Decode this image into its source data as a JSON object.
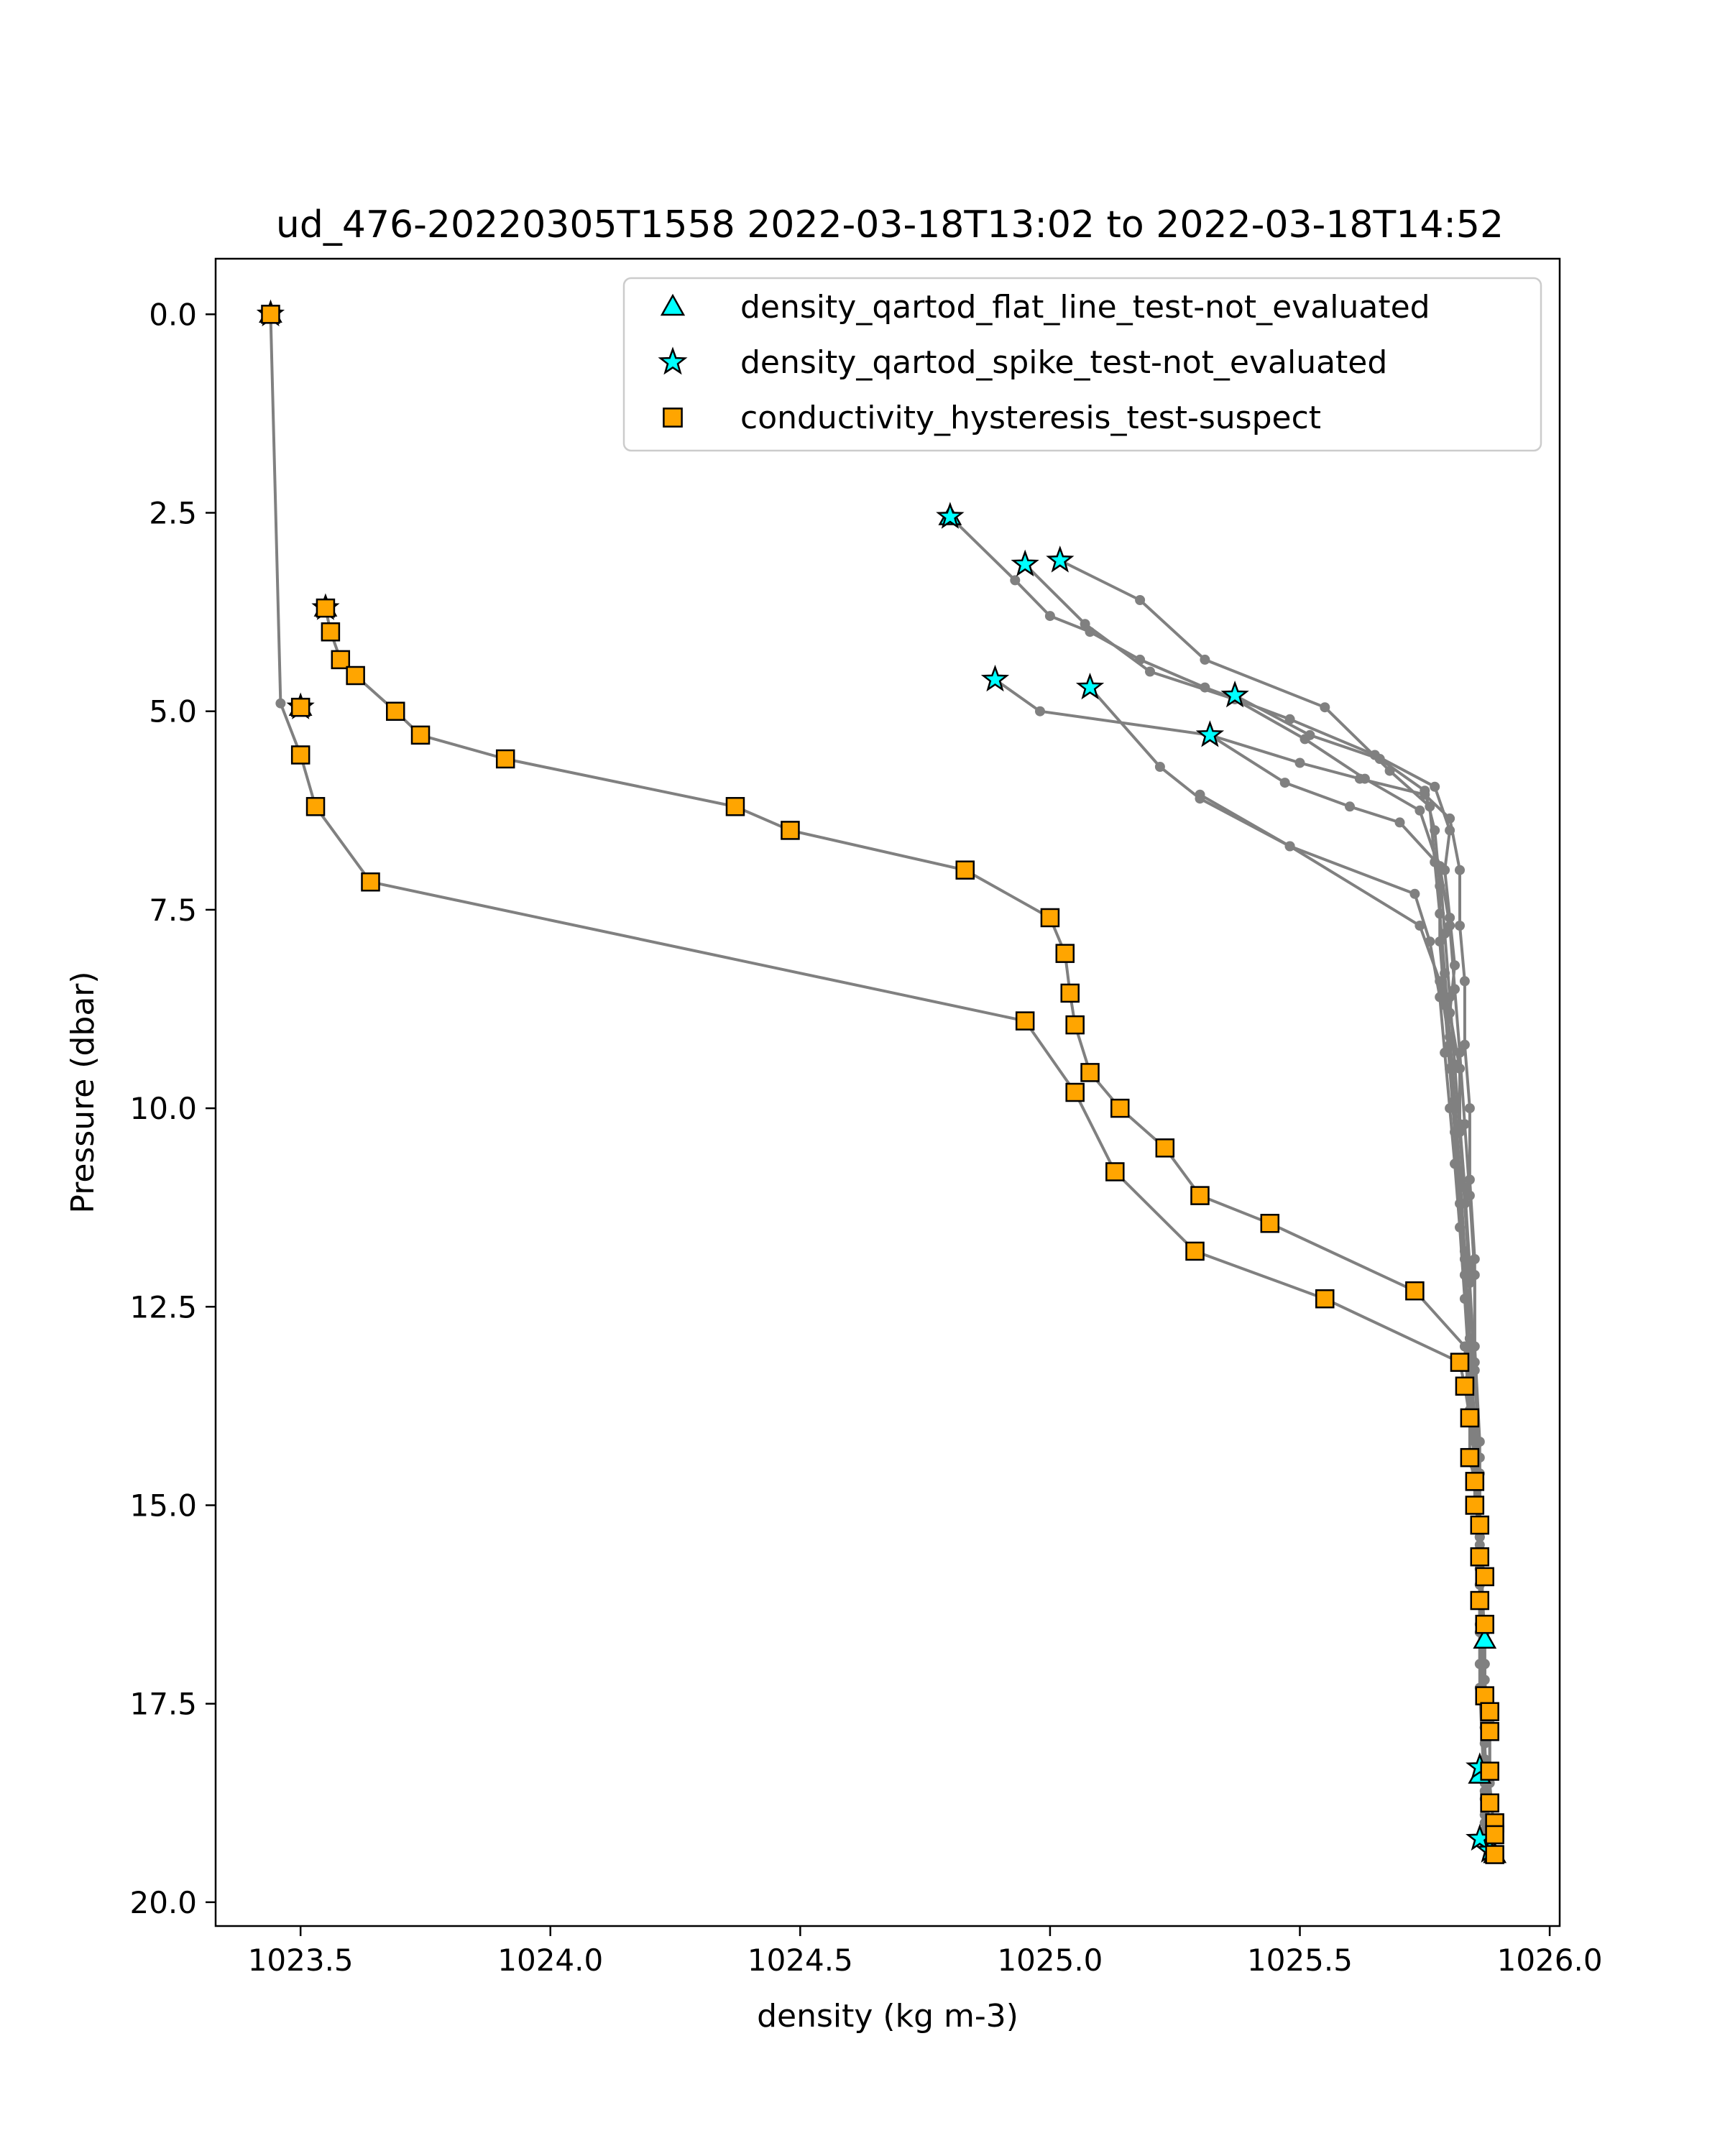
{
  "chart_data": {
    "type": "line",
    "title": "ud_476-20220305T1558 2022-03-18T13:02 to 2022-03-18T14:52",
    "xlabel": "density (kg m-3)",
    "ylabel": "Pressure (dbar)",
    "xlim": [
      1023.33,
      1026.02
    ],
    "ylim": [
      20.3,
      -0.7
    ],
    "y_inverted": true,
    "grid": false,
    "legend_position": "top-right",
    "x_ticks": [
      1023.5,
      1024.0,
      1024.5,
      1025.0,
      1025.5,
      1026.0
    ],
    "x_tick_labels": [
      "1023.5",
      "1024.0",
      "1024.5",
      "1025.0",
      "1025.5",
      "1026.0"
    ],
    "y_ticks": [
      0.0,
      2.5,
      5.0,
      7.5,
      10.0,
      12.5,
      15.0,
      17.5,
      20.0
    ],
    "y_tick_labels": [
      "0.0",
      "2.5",
      "5.0",
      "7.5",
      "10.0",
      "12.5",
      "15.0",
      "17.5",
      "20.0"
    ],
    "colors": {
      "profile_line": "#808080",
      "marker_fill_qartod": "#00ffff",
      "marker_fill_suspect": "#ffa500",
      "marker_edge": "#000000"
    },
    "profile_lines": [
      [
        [
          1023.44,
          0.0
        ],
        [
          1023.46,
          4.9
        ],
        [
          1023.5,
          5.55
        ],
        [
          1023.53,
          6.2
        ],
        [
          1023.64,
          7.15
        ],
        [
          1024.95,
          8.9
        ],
        [
          1025.05,
          9.8
        ],
        [
          1025.13,
          10.8
        ],
        [
          1025.29,
          11.8
        ],
        [
          1025.55,
          12.4
        ],
        [
          1025.82,
          13.2
        ],
        [
          1025.83,
          13.5
        ],
        [
          1025.84,
          13.9
        ],
        [
          1025.84,
          14.4
        ],
        [
          1025.85,
          14.7
        ],
        [
          1025.85,
          15.0
        ],
        [
          1025.86,
          15.25
        ],
        [
          1025.86,
          15.65
        ],
        [
          1025.87,
          15.9
        ],
        [
          1025.86,
          16.2
        ],
        [
          1025.87,
          16.5
        ],
        [
          1025.87,
          16.7
        ],
        [
          1025.87,
          17.0
        ],
        [
          1025.87,
          17.4
        ],
        [
          1025.88,
          17.7
        ],
        [
          1025.88,
          17.9
        ],
        [
          1025.88,
          18.3
        ],
        [
          1025.87,
          18.6
        ],
        [
          1025.88,
          19.0
        ],
        [
          1025.88,
          19.4
        ]
      ],
      [
        [
          1023.55,
          3.7
        ],
        [
          1023.56,
          4.0
        ],
        [
          1023.58,
          4.35
        ],
        [
          1023.61,
          4.55
        ],
        [
          1023.69,
          5.0
        ],
        [
          1023.74,
          5.3
        ],
        [
          1023.91,
          5.6
        ],
        [
          1024.37,
          6.2
        ],
        [
          1024.48,
          6.5
        ],
        [
          1024.83,
          7.0
        ],
        [
          1025.0,
          7.6
        ],
        [
          1025.03,
          8.05
        ],
        [
          1025.04,
          8.55
        ],
        [
          1025.05,
          8.95
        ],
        [
          1025.08,
          9.55
        ],
        [
          1025.14,
          10.0
        ],
        [
          1025.23,
          10.5
        ],
        [
          1025.3,
          11.1
        ],
        [
          1025.44,
          11.45
        ],
        [
          1025.73,
          12.3
        ],
        [
          1025.83,
          13.0
        ],
        [
          1025.84,
          13.8
        ],
        [
          1025.85,
          14.5
        ],
        [
          1025.86,
          15.2
        ],
        [
          1025.86,
          16.0
        ],
        [
          1025.87,
          16.6
        ],
        [
          1025.87,
          17.2
        ],
        [
          1025.88,
          17.9
        ],
        [
          1025.88,
          18.5
        ],
        [
          1025.89,
          19.2
        ]
      ],
      [
        [
          1024.8,
          2.55
        ],
        [
          1024.93,
          3.35
        ],
        [
          1025.0,
          3.8
        ],
        [
          1025.08,
          4.0
        ],
        [
          1025.18,
          4.35
        ],
        [
          1025.31,
          4.7
        ],
        [
          1025.48,
          5.1
        ],
        [
          1025.65,
          5.55
        ],
        [
          1025.77,
          5.95
        ],
        [
          1025.8,
          6.5
        ],
        [
          1025.79,
          7.0
        ],
        [
          1025.8,
          7.6
        ],
        [
          1025.81,
          8.2
        ],
        [
          1025.8,
          8.8
        ],
        [
          1025.82,
          9.5
        ],
        [
          1025.82,
          10.2
        ],
        [
          1025.83,
          11.0
        ],
        [
          1025.84,
          12.0
        ],
        [
          1025.84,
          13.0
        ],
        [
          1025.85,
          14.0
        ],
        [
          1025.86,
          15.5
        ],
        [
          1025.87,
          17.0
        ],
        [
          1025.87,
          18.5
        ],
        [
          1025.88,
          19.4
        ]
      ],
      [
        [
          1025.02,
          3.1
        ],
        [
          1025.18,
          3.6
        ],
        [
          1025.31,
          4.35
        ],
        [
          1025.55,
          4.95
        ],
        [
          1025.68,
          5.75
        ],
        [
          1025.76,
          6.2
        ],
        [
          1025.77,
          6.9
        ],
        [
          1025.78,
          7.55
        ],
        [
          1025.79,
          8.3
        ],
        [
          1025.8,
          9.1
        ],
        [
          1025.81,
          9.9
        ],
        [
          1025.82,
          10.8
        ],
        [
          1025.83,
          11.8
        ],
        [
          1025.84,
          12.9
        ],
        [
          1025.85,
          14.2
        ],
        [
          1025.86,
          15.8
        ],
        [
          1025.86,
          17.3
        ],
        [
          1025.87,
          18.7
        ]
      ],
      [
        [
          1024.95,
          3.15
        ],
        [
          1025.07,
          3.9
        ],
        [
          1025.2,
          4.5
        ],
        [
          1025.37,
          4.85
        ],
        [
          1025.51,
          5.35
        ],
        [
          1025.63,
          5.85
        ],
        [
          1025.74,
          6.25
        ],
        [
          1025.78,
          7.0
        ],
        [
          1025.79,
          7.8
        ],
        [
          1025.8,
          8.6
        ],
        [
          1025.81,
          9.45
        ],
        [
          1025.82,
          10.3
        ],
        [
          1025.83,
          11.2
        ],
        [
          1025.84,
          12.2
        ],
        [
          1025.85,
          13.3
        ],
        [
          1025.86,
          14.6
        ],
        [
          1025.86,
          16.0
        ],
        [
          1025.87,
          17.5
        ],
        [
          1025.87,
          18.9
        ]
      ],
      [
        [
          1024.89,
          4.6
        ],
        [
          1024.98,
          5.0
        ],
        [
          1025.32,
          5.3
        ],
        [
          1025.5,
          5.65
        ],
        [
          1025.62,
          5.85
        ],
        [
          1025.75,
          6.05
        ],
        [
          1025.8,
          6.35
        ],
        [
          1025.82,
          7.0
        ],
        [
          1025.82,
          7.7
        ],
        [
          1025.83,
          8.4
        ],
        [
          1025.83,
          9.2
        ],
        [
          1025.84,
          10.0
        ],
        [
          1025.84,
          10.9
        ],
        [
          1025.85,
          11.9
        ],
        [
          1025.85,
          13.0
        ],
        [
          1025.86,
          14.2
        ],
        [
          1025.86,
          15.4
        ],
        [
          1025.87,
          16.7
        ],
        [
          1025.87,
          18.0
        ],
        [
          1025.88,
          19.3
        ]
      ],
      [
        [
          1025.08,
          4.7
        ],
        [
          1025.22,
          5.7
        ],
        [
          1025.3,
          6.1
        ],
        [
          1025.48,
          6.7
        ],
        [
          1025.73,
          7.3
        ],
        [
          1025.76,
          7.9
        ],
        [
          1025.78,
          8.6
        ],
        [
          1025.79,
          9.3
        ],
        [
          1025.8,
          10.0
        ],
        [
          1025.81,
          10.7
        ],
        [
          1025.82,
          11.5
        ],
        [
          1025.83,
          12.4
        ],
        [
          1025.84,
          13.4
        ],
        [
          1025.85,
          14.5
        ],
        [
          1025.86,
          15.8
        ],
        [
          1025.86,
          17.0
        ],
        [
          1025.87,
          18.2
        ],
        [
          1025.87,
          19.3
        ]
      ],
      [
        [
          1025.37,
          4.8
        ],
        [
          1025.52,
          5.3
        ],
        [
          1025.66,
          5.6
        ],
        [
          1025.75,
          6.0
        ],
        [
          1025.77,
          6.5
        ],
        [
          1025.78,
          7.2
        ],
        [
          1025.78,
          7.9
        ],
        [
          1025.79,
          8.7
        ],
        [
          1025.8,
          9.5
        ],
        [
          1025.81,
          10.3
        ],
        [
          1025.82,
          11.2
        ],
        [
          1025.83,
          12.1
        ],
        [
          1025.84,
          13.1
        ],
        [
          1025.85,
          14.2
        ],
        [
          1025.86,
          15.4
        ],
        [
          1025.86,
          16.6
        ],
        [
          1025.87,
          17.8
        ],
        [
          1025.87,
          19.0
        ]
      ],
      [
        [
          1025.32,
          5.3
        ],
        [
          1025.47,
          5.9
        ],
        [
          1025.6,
          6.2
        ],
        [
          1025.7,
          6.4
        ],
        [
          1025.78,
          6.95
        ],
        [
          1025.8,
          7.7
        ],
        [
          1025.81,
          8.5
        ],
        [
          1025.82,
          9.3
        ],
        [
          1025.83,
          10.2
        ],
        [
          1025.84,
          11.1
        ],
        [
          1025.85,
          12.1
        ],
        [
          1025.85,
          13.2
        ],
        [
          1025.86,
          14.4
        ],
        [
          1025.86,
          15.7
        ],
        [
          1025.87,
          17.0
        ],
        [
          1025.87,
          18.3
        ],
        [
          1025.88,
          19.4
        ]
      ],
      [
        [
          1025.3,
          6.05
        ],
        [
          1025.48,
          6.7
        ],
        [
          1025.74,
          7.7
        ],
        [
          1025.78,
          8.4
        ],
        [
          1025.8,
          9.2
        ],
        [
          1025.81,
          10.0
        ],
        [
          1025.82,
          10.9
        ],
        [
          1025.83,
          11.9
        ],
        [
          1025.84,
          12.9
        ],
        [
          1025.85,
          14.0
        ],
        [
          1025.86,
          15.2
        ],
        [
          1025.86,
          16.5
        ],
        [
          1025.87,
          17.8
        ],
        [
          1025.87,
          19.1
        ]
      ]
    ],
    "series": [
      {
        "name": "density_qartod_flat_line_test-not_evaluated",
        "marker": "triangle",
        "color": "#00ffff",
        "x": [
          1023.44,
          1023.55,
          1023.5,
          1024.8,
          1025.87,
          1025.86,
          1025.89
        ],
        "y": [
          0.0,
          3.7,
          4.95,
          2.55,
          16.7,
          18.4,
          19.4
        ]
      },
      {
        "name": "density_qartod_spike_test-not_evaluated",
        "marker": "star",
        "color": "#00ffff",
        "x": [
          1023.44,
          1023.55,
          1023.5,
          1024.8,
          1024.95,
          1025.02,
          1024.89,
          1025.08,
          1025.37,
          1025.32,
          1025.86,
          1025.86,
          1025.88
        ],
        "y": [
          0.0,
          3.7,
          4.95,
          2.55,
          3.15,
          3.1,
          4.6,
          4.7,
          4.8,
          5.3,
          18.3,
          19.2,
          19.35
        ]
      },
      {
        "name": "conductivity_hysteresis_test-suspect",
        "marker": "square",
        "color": "#ffa500",
        "x": [
          1023.44,
          1023.55,
          1023.56,
          1023.58,
          1023.61,
          1023.69,
          1023.74,
          1023.91,
          1024.37,
          1024.48,
          1024.83,
          1025.0,
          1025.03,
          1025.04,
          1025.05,
          1025.08,
          1025.14,
          1025.23,
          1025.3,
          1025.44,
          1025.73,
          1023.5,
          1023.5,
          1023.53,
          1023.64,
          1024.95,
          1025.05,
          1025.13,
          1025.29,
          1025.55,
          1025.82,
          1025.83,
          1025.84,
          1025.84,
          1025.85,
          1025.85,
          1025.86,
          1025.86,
          1025.87,
          1025.86,
          1025.87,
          1025.87,
          1025.88,
          1025.88,
          1025.88,
          1025.88,
          1025.89,
          1025.89,
          1025.89
        ],
        "y": [
          0.0,
          3.7,
          4.0,
          4.35,
          4.55,
          5.0,
          5.3,
          5.6,
          6.2,
          6.5,
          7.0,
          7.6,
          8.05,
          8.55,
          8.95,
          9.55,
          10.0,
          10.5,
          11.1,
          11.45,
          12.3,
          4.95,
          5.55,
          6.2,
          7.15,
          8.9,
          9.8,
          10.8,
          11.8,
          12.4,
          13.2,
          13.5,
          13.9,
          14.4,
          14.7,
          15.0,
          15.25,
          15.65,
          15.9,
          16.2,
          16.5,
          17.4,
          17.6,
          17.85,
          18.35,
          18.75,
          19.0,
          19.15,
          19.4
        ]
      }
    ]
  }
}
